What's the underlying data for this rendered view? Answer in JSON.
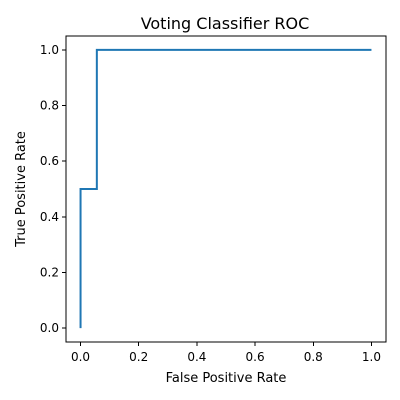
{
  "chart_data": {
    "type": "line",
    "title": "Voting Classifier ROC",
    "xlabel": "False Positive Rate",
    "ylabel": "True Positive Rate",
    "xlim": [
      -0.05,
      1.05
    ],
    "ylim": [
      -0.05,
      1.05
    ],
    "x_ticks": [
      0.0,
      0.2,
      0.4,
      0.6,
      0.8,
      1.0
    ],
    "y_ticks": [
      0.0,
      0.2,
      0.4,
      0.6,
      0.8,
      1.0
    ],
    "x_tick_labels": [
      "0.0",
      "0.2",
      "0.4",
      "0.6",
      "0.8",
      "1.0"
    ],
    "y_tick_labels": [
      "0.0",
      "0.2",
      "0.4",
      "0.6",
      "0.8",
      "1.0"
    ],
    "grid": false,
    "series": [
      {
        "color": "#1f77b4",
        "x": [
          0.0,
          0.0,
          0.0,
          0.056,
          0.056,
          1.0
        ],
        "y": [
          0.0,
          0.5,
          0.5,
          0.5,
          1.0,
          1.0
        ],
        "drawstyle": "steps"
      }
    ]
  }
}
